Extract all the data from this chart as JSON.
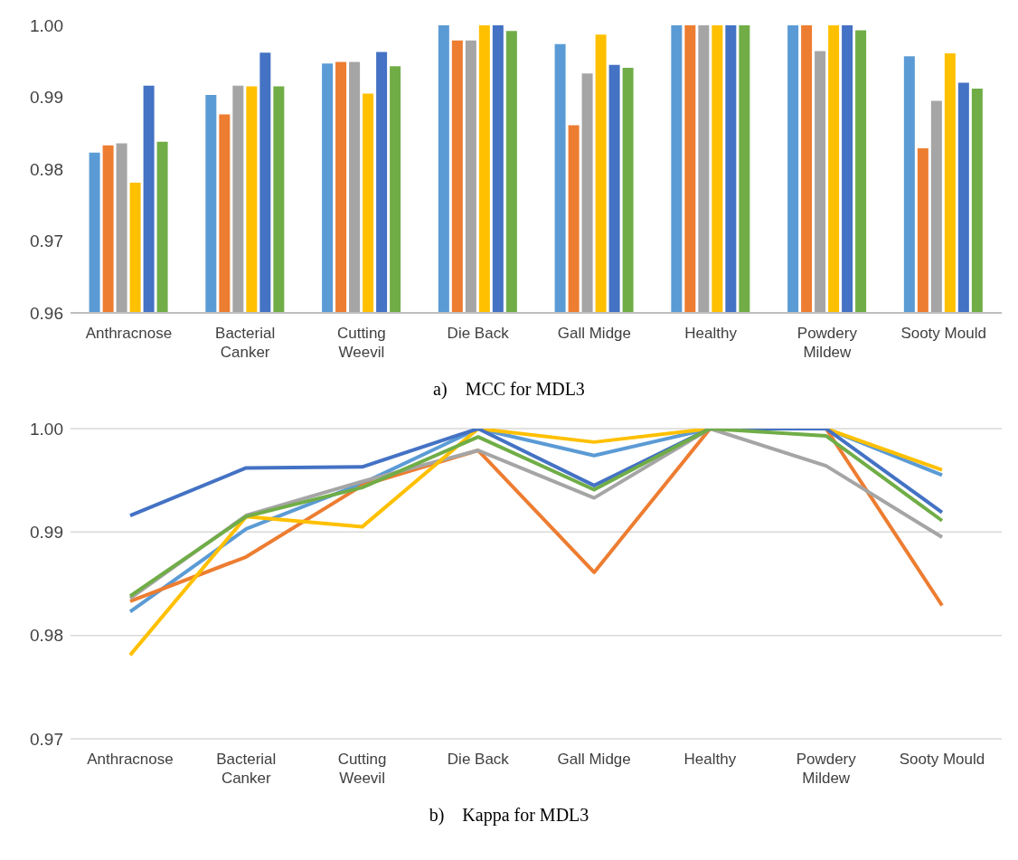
{
  "chart_data": [
    {
      "type": "bar",
      "categories": [
        "Anthracnose",
        "Bacterial Canker",
        "Cutting Weevil",
        "Die Back",
        "Gall Midge",
        "Healthy",
        "Powdery Mildew",
        "Sooty Mould"
      ],
      "series": [
        {
          "color": "#5b9bd5",
          "values": [
            0.9823,
            0.9903,
            0.9947,
            1.0,
            0.9974,
            1.0,
            1.0,
            0.9957
          ]
        },
        {
          "color": "#ed7d31",
          "values": [
            0.9833,
            0.9876,
            0.9949,
            0.9979,
            0.9861,
            1.0,
            1.0,
            0.9829
          ]
        },
        {
          "color": "#a5a5a5",
          "values": [
            0.9836,
            0.9916,
            0.9949,
            0.9979,
            0.9933,
            1.0,
            0.9964,
            0.9895
          ]
        },
        {
          "color": "#ffc000",
          "values": [
            0.9781,
            0.9915,
            0.9905,
            1.0,
            0.9987,
            1.0,
            1.0,
            0.9961
          ]
        },
        {
          "color": "#4472c4",
          "values": [
            0.9916,
            0.9962,
            0.9963,
            1.0,
            0.9945,
            1.0,
            1.0,
            0.992
          ]
        },
        {
          "color": "#70ad47",
          "values": [
            0.9838,
            0.9915,
            0.9943,
            0.9992,
            0.9941,
            1.0,
            0.9993,
            0.9912
          ]
        }
      ],
      "ylim": [
        0.96,
        1.0
      ],
      "yticks": [
        0.96,
        0.97,
        0.98,
        0.99,
        {
          "value": 1.0,
          "label": "1.00"
        }
      ],
      "annotations": [
        "a)    MCC for MDL3"
      ]
    },
    {
      "type": "line",
      "categories": [
        "Anthracnose",
        "Bacterial Canker",
        "Cutting Weevil",
        "Die Back",
        "Gall Midge",
        "Healthy",
        "Powdery Mildew",
        "Sooty Mould"
      ],
      "series": [
        {
          "color": "#5b9bd5",
          "values": [
            0.9823,
            0.9903,
            0.9947,
            1.0,
            0.9974,
            1.0,
            1.0,
            0.9955
          ]
        },
        {
          "color": "#ed7d31",
          "values": [
            0.9833,
            0.9876,
            0.9945,
            0.9979,
            0.9861,
            1.0,
            1.0,
            0.9829
          ]
        },
        {
          "color": "#a5a5a5",
          "values": [
            0.9836,
            0.9916,
            0.9949,
            0.9979,
            0.9933,
            1.0,
            0.9964,
            0.9895
          ]
        },
        {
          "color": "#ffc000",
          "values": [
            0.9781,
            0.9915,
            0.9905,
            1.0,
            0.9987,
            1.0,
            1.0,
            0.996
          ]
        },
        {
          "color": "#4472c4",
          "values": [
            0.9916,
            0.9962,
            0.9963,
            1.0,
            0.9945,
            1.0,
            1.0,
            0.9919
          ]
        },
        {
          "color": "#70ad47",
          "values": [
            0.9838,
            0.9915,
            0.9943,
            0.9992,
            0.9941,
            1.0,
            0.9993,
            0.9911
          ]
        }
      ],
      "ylim": [
        0.97,
        1.0
      ],
      "yticks": [
        0.97,
        0.98,
        0.99,
        {
          "value": 1.0,
          "label": "1.00"
        }
      ],
      "grid": true,
      "marker": "none",
      "annotations": [
        "b)    Kappa for MDL3"
      ]
    }
  ]
}
